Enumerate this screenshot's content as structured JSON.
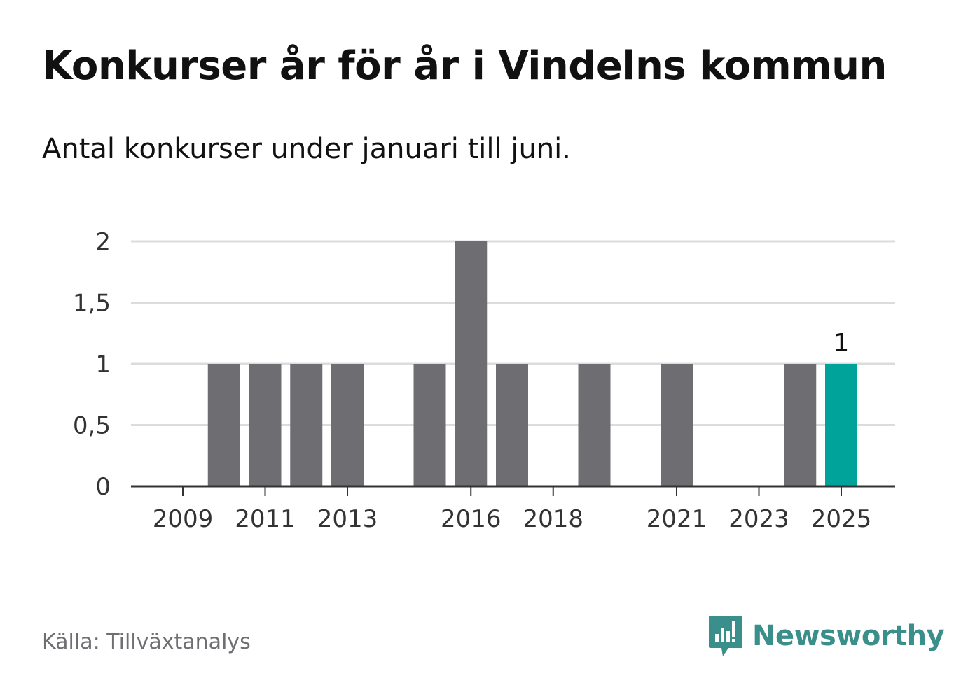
{
  "header": {
    "title": "Konkurser år för år i Vindelns kommun",
    "subtitle": "Antal konkurser under januari till juni."
  },
  "footer": {
    "source": "Källa: Tillväxtanalys",
    "brand": "Newsworthy",
    "brand_icon": "bar-chart-speech-bubble-icon"
  },
  "colors": {
    "bar": "#6e6d72",
    "highlight": "#00a39a",
    "grid": "#dcdcdc",
    "axis": "#333333",
    "brand": "#3a8f8a"
  },
  "chart_data": {
    "type": "bar",
    "categories": [
      "2009",
      "2010",
      "2011",
      "2012",
      "2013",
      "2014",
      "2015",
      "2016",
      "2017",
      "2018",
      "2019",
      "2020",
      "2021",
      "2022",
      "2023",
      "2024",
      "2025"
    ],
    "values": [
      0,
      1,
      1,
      1,
      1,
      0,
      1,
      2,
      1,
      0,
      1,
      0,
      1,
      0,
      0,
      1,
      1
    ],
    "highlight_category": "2025",
    "data_labels": [
      {
        "category": "2025",
        "text": "1"
      }
    ],
    "x_tick_labels": [
      "2009",
      "2011",
      "2013",
      "2016",
      "2018",
      "2021",
      "2023",
      "2025"
    ],
    "y_ticks": [
      0,
      0.5,
      1,
      1.5,
      2
    ],
    "y_tick_labels": [
      "0",
      "0,5",
      "1",
      "1,5",
      "2"
    ],
    "ylim": [
      0,
      2
    ],
    "grid": true,
    "legend": "none",
    "xlabel": "",
    "ylabel": ""
  }
}
